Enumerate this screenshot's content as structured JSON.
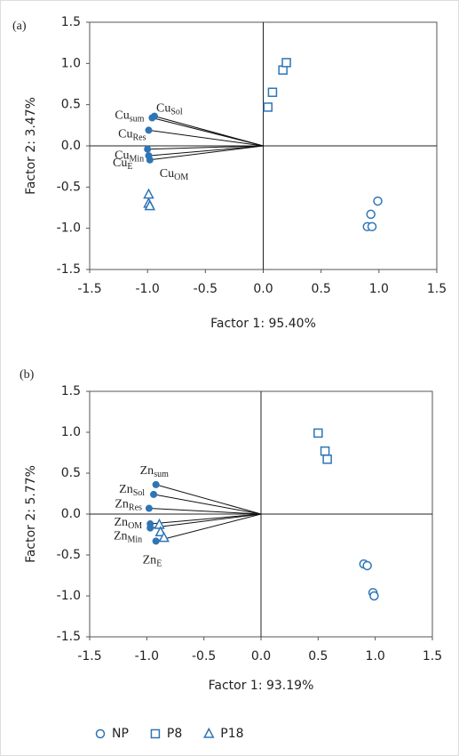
{
  "chart_data": [
    {
      "type": "scatter",
      "panel_label": "(a)",
      "xlabel": "Factor 1: 95.40%",
      "ylabel": "Factor 2: 3.47%",
      "xlim": [
        -1.5,
        1.5
      ],
      "ylim": [
        -1.5,
        1.5
      ],
      "xticks": [
        -1.5,
        {
          "value": -1,
          "label": "-1.0"
        },
        -0.5,
        {
          "value": 0,
          "label": "0.0"
        },
        0.5,
        {
          "value": 1,
          "label": "1.0"
        },
        1.5
      ],
      "yticks": [
        -1.5,
        {
          "value": -1,
          "label": "-1.0"
        },
        -0.5,
        {
          "value": 0,
          "label": "0.0"
        },
        0.5,
        {
          "value": 1,
          "label": "1.0"
        },
        1.5
      ],
      "series": [
        {
          "name": "NP",
          "marker": "circle",
          "color": "#2e75b6",
          "x": [
            0.99,
            0.93,
            0.9,
            0.94
          ],
          "y": [
            -0.67,
            -0.83,
            -0.98,
            -0.98
          ]
        },
        {
          "name": "P8",
          "marker": "square",
          "color": "#2e75b6",
          "x": [
            0.04,
            0.08,
            0.17,
            0.2
          ],
          "y": [
            0.47,
            0.65,
            0.92,
            1.01
          ]
        },
        {
          "name": "P18",
          "marker": "triangle",
          "color": "#2e75b6",
          "x": [
            -0.99,
            -0.99,
            -0.98
          ],
          "y": [
            -0.59,
            -0.7,
            -0.73
          ]
        }
      ],
      "loadings": {
        "color": "#2e75b6",
        "x": [
          -0.96,
          -0.94,
          -0.99,
          -1.0,
          -0.99,
          -0.98
        ],
        "y": [
          0.34,
          0.36,
          0.19,
          -0.04,
          -0.12,
          -0.17
        ],
        "labels": [
          {
            "main": "Cu",
            "sub": "sum"
          },
          {
            "main": "Cu",
            "sub": "Sol"
          },
          {
            "main": "Cu",
            "sub": "Res"
          },
          {
            "main": "Cu",
            "sub": "Min"
          },
          {
            "main": "Cu",
            "sub": "E"
          },
          {
            "main": "Cu",
            "sub": "OM"
          }
        ]
      }
    },
    {
      "type": "scatter",
      "panel_label": "(b)",
      "xlabel": "Factor 1: 93.19%",
      "ylabel": "Factor 2: 5.77%",
      "xlim": [
        -1.5,
        1.5
      ],
      "ylim": [
        -1.5,
        1.5
      ],
      "xticks": [
        -1.5,
        {
          "value": -1,
          "label": "-1.0"
        },
        -0.5,
        {
          "value": 0,
          "label": "0.0"
        },
        0.5,
        {
          "value": 1,
          "label": "1.0"
        },
        1.5
      ],
      "yticks": [
        -1.5,
        {
          "value": -1,
          "label": "-1.0"
        },
        -0.5,
        {
          "value": 0,
          "label": "0.0"
        },
        0.5,
        {
          "value": 1,
          "label": "1.0"
        },
        1.5
      ],
      "series": [
        {
          "name": "NP",
          "marker": "circle",
          "color": "#2e75b6",
          "x": [
            0.9,
            0.93,
            0.98,
            0.99
          ],
          "y": [
            -0.61,
            -0.63,
            -0.96,
            -1.0
          ]
        },
        {
          "name": "P8",
          "marker": "square",
          "color": "#2e75b6",
          "x": [
            0.5,
            0.56,
            0.58
          ],
          "y": [
            0.99,
            0.77,
            0.67
          ]
        },
        {
          "name": "P18",
          "marker": "triangle",
          "color": "#2e75b6",
          "x": [
            -0.89,
            -0.88,
            -0.85
          ],
          "y": [
            -0.13,
            -0.22,
            -0.29
          ]
        }
      ],
      "loadings": {
        "color": "#2e75b6",
        "x": [
          -0.92,
          -0.94,
          -0.98,
          -0.97,
          -0.97,
          -0.92
        ],
        "y": [
          0.36,
          0.24,
          0.07,
          -0.12,
          -0.17,
          -0.33
        ],
        "labels": [
          {
            "main": "Zn",
            "sub": "sum"
          },
          {
            "main": "Zn",
            "sub": "Sol"
          },
          {
            "main": "Zn",
            "sub": "Res"
          },
          {
            "main": "Zn",
            "sub": "OM"
          },
          {
            "main": "Zn",
            "sub": "Min"
          },
          {
            "main": "Zn",
            "sub": "E"
          }
        ]
      }
    }
  ]
}
